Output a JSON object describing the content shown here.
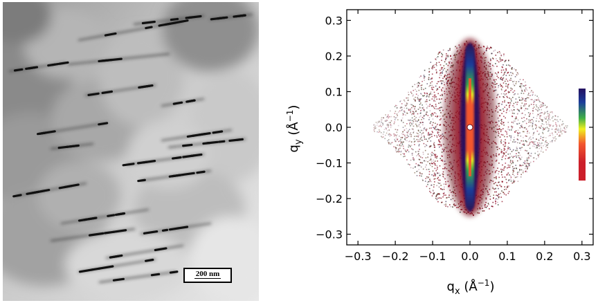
{
  "left_panel": {
    "scale_bar_label": "200 nm"
  },
  "right_panel": {
    "chart_data": {
      "type": "heatmap",
      "title": "",
      "xlabel": "q",
      "xlabel_sub": "x",
      "xlabel_unit_open": " (Å",
      "xlabel_unit_exp": "−1",
      "xlabel_unit_close": ")",
      "ylabel": "q",
      "ylabel_sub": "y",
      "ylabel_unit_open": " (Å",
      "ylabel_unit_exp": "−1",
      "ylabel_unit_close": ")",
      "xlim": [
        -0.33,
        0.33
      ],
      "ylim": [
        -0.33,
        0.33
      ],
      "x_ticks": [
        -0.3,
        -0.2,
        -0.1,
        0.0,
        0.1,
        0.2,
        0.3
      ],
      "y_ticks": [
        0.3,
        0.2,
        0.1,
        0.0,
        -0.1,
        -0.2,
        -0.3
      ],
      "x_tick_labels": [
        "−0.3",
        "−0.2",
        "−0.1",
        "0.0",
        "0.1",
        "0.2",
        "0.3"
      ],
      "y_tick_labels": [
        "0.3",
        "0.2",
        "0.1",
        "0.0",
        "−0.1",
        "−0.2",
        "−0.3"
      ],
      "scattering_region_halfwidth_qx": 0.26,
      "scattering_region_halfheight_qy": 0.25,
      "streak_direction": "vertical (along qy)",
      "colorscale": [
        "#7a0018",
        "#cc1f2a",
        "#f3572e",
        "#f0f020",
        "#3fae47",
        "#1b3d9a",
        "#241060"
      ],
      "grid": false,
      "legend": "colorbar right"
    }
  }
}
